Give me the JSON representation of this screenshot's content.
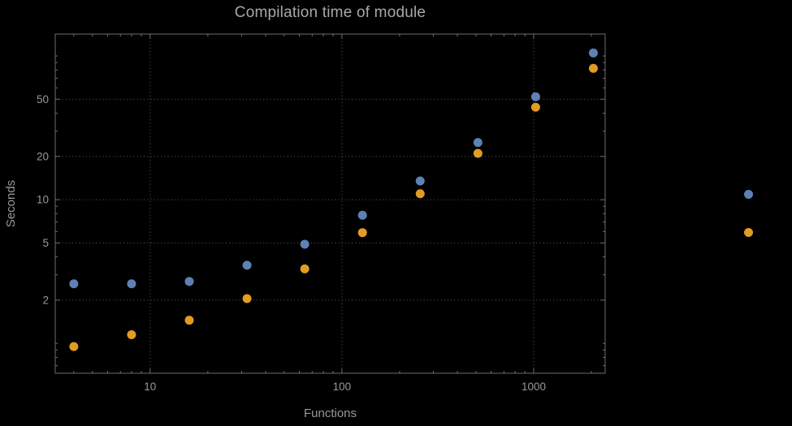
{
  "chart_data": {
    "type": "scatter",
    "title": "Compilation time of module",
    "xlabel": "Functions",
    "ylabel": "Seconds",
    "x_scale": "log",
    "y_scale": "log",
    "x_range": [
      3.2,
      2360
    ],
    "y_range": [
      0.62,
      142
    ],
    "x_ticks": [
      {
        "value": 10,
        "label": "10"
      },
      {
        "value": 100,
        "label": "100"
      },
      {
        "value": 1000,
        "label": "1000"
      }
    ],
    "y_ticks": [
      {
        "value": 2,
        "label": "2"
      },
      {
        "value": 5,
        "label": "5"
      },
      {
        "value": 10,
        "label": "10"
      },
      {
        "value": 20,
        "label": "20"
      },
      {
        "value": 50,
        "label": "50"
      }
    ],
    "grid": "dotted-major",
    "legend_position": "outside-right",
    "x": [
      4,
      8,
      16,
      32,
      64,
      128,
      256,
      512,
      1024,
      2048
    ],
    "series": [
      {
        "name": "blue",
        "color": "#5e81b5",
        "values": [
          2.6,
          2.6,
          2.7,
          3.5,
          4.9,
          7.8,
          13.5,
          25,
          52,
          105
        ]
      },
      {
        "name": "orange",
        "color": "#e19c24",
        "values": [
          0.95,
          1.15,
          1.45,
          2.05,
          3.3,
          5.9,
          11,
          21,
          44,
          82
        ]
      }
    ],
    "colors": {
      "background": "#000000",
      "text": "#989898",
      "title_text": "#a8a8a8",
      "frame": "#6e6e6e",
      "grid": "#5c5c5c"
    }
  }
}
